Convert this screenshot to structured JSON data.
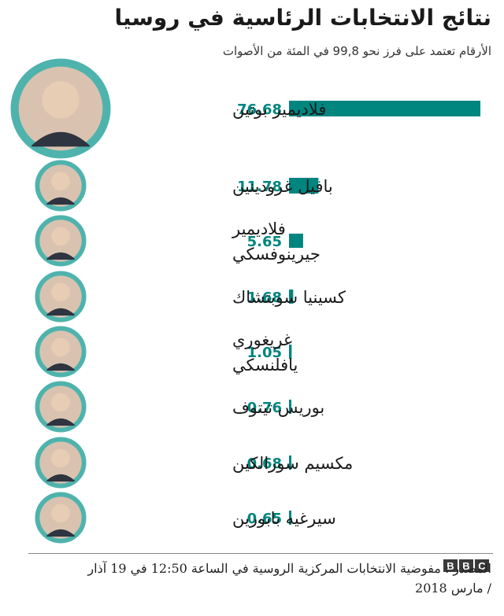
{
  "header": {
    "title": "نتائج الانتخابات الرئاسية في روسيا",
    "subtitle": "الأرقام تعتمد على فرز نحو 99,8 في المئة من الأصوات"
  },
  "chart_data": {
    "type": "bar",
    "orientation": "horizontal",
    "title": "نتائج الانتخابات الرئاسية في روسيا",
    "subtitle": "الأرقام تعتمد على فرز نحو 99,8 في المئة من الأصوات",
    "categories": [
      [
        "فلاديمير بوتين"
      ],
      [
        "بافيل غرودينين"
      ],
      [
        "فلاديمير",
        "جيرينوفسكي"
      ],
      [
        "كسينيا سوبتشاك"
      ],
      [
        "غريغوري",
        "يافلنسكي"
      ],
      [
        "بوريس تيتوف"
      ],
      [
        "مكسيم سورالكين"
      ],
      [
        "سيرغيه بابورين"
      ]
    ],
    "values": [
      76.68,
      11.78,
      5.65,
      1.68,
      1.05,
      0.76,
      0.68,
      0.65
    ],
    "value_labels": [
      "76.68",
      "11.78",
      "5.65",
      "1.68",
      "1.05",
      "0.76",
      "0.68",
      "0.65"
    ],
    "bar_color": "#00857f",
    "xlim": [
      0,
      76.68
    ],
    "grid": false,
    "legend": "none"
  },
  "footer": {
    "source": "المصدر : مفوضية الانتخابات المركزية الروسية في الساعة 12:50 في 19 آذار / مارس 2018",
    "logo_letters": [
      "B",
      "B",
      "C"
    ]
  },
  "colors": {
    "accent": "#00857f",
    "avatar_ring": "#4fb3ad"
  }
}
